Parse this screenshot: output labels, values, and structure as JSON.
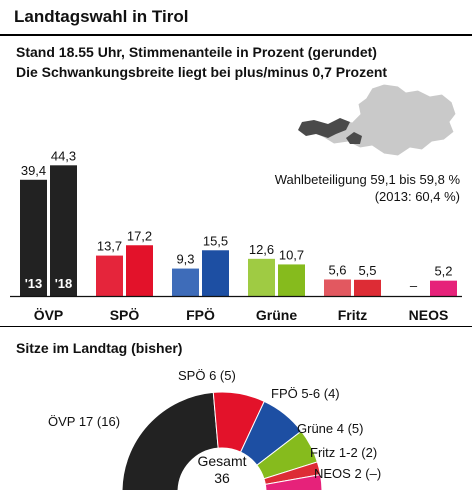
{
  "title": "Landtagswahl in Tirol",
  "subtitle_line1": "Stand 18.55 Uhr, Stimmenanteile in Prozent (gerundet)",
  "subtitle_line2": "Die Schwankungsbreite liegt bei plus/minus 0,7 Prozent",
  "turnout_line1": "Wahlbeteiligung 59,1 bis 59,8 %",
  "turnout_line2": "(2013: 60,4 %)",
  "seats_title": "Sitze im Landtag (bisher)",
  "chart_data": [
    {
      "type": "bar",
      "categories": [
        "ÖVP",
        "SPÖ",
        "FPÖ",
        "Grüne",
        "Fritz",
        "NEOS"
      ],
      "series": [
        {
          "name": "'13",
          "values": [
            39.4,
            13.7,
            9.3,
            12.6,
            5.6,
            null
          ],
          "labels": [
            "39,4",
            "13,7",
            "9,3",
            "12,6",
            "5,6",
            "–"
          ]
        },
        {
          "name": "'18",
          "values": [
            44.3,
            17.2,
            15.5,
            10.7,
            5.5,
            5.2
          ],
          "labels": [
            "44,3",
            "17,2",
            "15,5",
            "10,7",
            "5,5",
            "5,2"
          ]
        }
      ],
      "colors_2013": [
        "#1a1a1a",
        "#e8283b",
        "#1f4fa8",
        "#8cc21a",
        "#e8283b",
        "#e8287f"
      ],
      "colors_2018": [
        "#1a1a1a",
        "#e8283b",
        "#1f4fa8",
        "#8cc21a",
        "#e8283b",
        "#e8287f"
      ],
      "colors_main": [
        "#222222",
        "#e3122a",
        "#1d4fa3",
        "#86bb1d",
        "#dd2c35",
        "#e6227a"
      ],
      "colors_prev": [
        "#222222",
        "#e3122a",
        "#2e5fb3",
        "#97c733",
        "#e04a52",
        "#e6227a"
      ]
    },
    {
      "type": "pie",
      "subtype": "parliament-half-donut",
      "total_label": "Gesamt",
      "total": 36,
      "slices": [
        {
          "party": "ÖVP",
          "seats": 17,
          "label": "ÖVP 17 (16)",
          "color": "#222222"
        },
        {
          "party": "SPÖ",
          "seats": 6,
          "label": "SPÖ 6 (5)",
          "color": "#e3122a"
        },
        {
          "party": "FPÖ",
          "seats": 5.5,
          "label": "FPÖ 5-6 (4)",
          "color": "#1d4fa3"
        },
        {
          "party": "Grüne",
          "seats": 4,
          "label": "Grüne 4 (5)",
          "color": "#86bb1d"
        },
        {
          "party": "Fritz",
          "seats": 1.5,
          "label": "Fritz 1-2 (2)",
          "color": "#dd2c35"
        },
        {
          "party": "NEOS",
          "seats": 2,
          "label": "NEOS 2 (–)",
          "color": "#e6227a"
        }
      ]
    }
  ]
}
